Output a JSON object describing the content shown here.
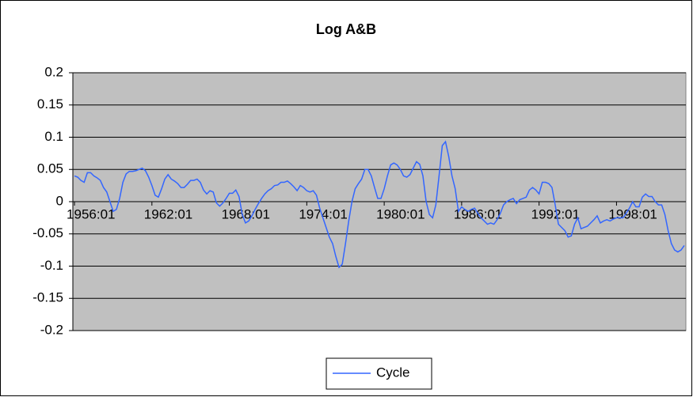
{
  "chart_data": {
    "type": "line",
    "title": "Log A&B",
    "categories": [
      "1956:01",
      null,
      null,
      null,
      null,
      null,
      null,
      null,
      null,
      null,
      null,
      null,
      null,
      null,
      null,
      null,
      null,
      null,
      null,
      null,
      null,
      null,
      null,
      null,
      "1962:01",
      null,
      null,
      null,
      null,
      null,
      null,
      null,
      null,
      null,
      null,
      null,
      null,
      null,
      null,
      null,
      null,
      null,
      null,
      null,
      null,
      null,
      null,
      null,
      "1968:01",
      null,
      null,
      null,
      null,
      null,
      null,
      null,
      null,
      null,
      null,
      null,
      null,
      null,
      null,
      null,
      null,
      null,
      null,
      null,
      null,
      null,
      null,
      null,
      "1974:01",
      null,
      null,
      null,
      null,
      null,
      null,
      null,
      null,
      null,
      null,
      null,
      null,
      null,
      null,
      null,
      null,
      null,
      null,
      null,
      null,
      null,
      null,
      null,
      "1980:01",
      null,
      null,
      null,
      null,
      null,
      null,
      null,
      null,
      null,
      null,
      null,
      null,
      null,
      null,
      null,
      null,
      null,
      null,
      null,
      null,
      null,
      null,
      null,
      "1986:01",
      null,
      null,
      null,
      null,
      null,
      null,
      null,
      null,
      null,
      null,
      null,
      null,
      null,
      null,
      null,
      null,
      null,
      null,
      null,
      null,
      null,
      null,
      null,
      "1992:01",
      null,
      null,
      null,
      null,
      null,
      null,
      null,
      null,
      null,
      null,
      null,
      null,
      null,
      null,
      null,
      null,
      null,
      null,
      null,
      null,
      null,
      null,
      null,
      "1998:01",
      null,
      null,
      null,
      null,
      null,
      null,
      null,
      null,
      null,
      null,
      null,
      null,
      null,
      null,
      null,
      null,
      null,
      null,
      null,
      null,
      null
    ],
    "series": [
      {
        "name": "Cycle",
        "color": "#3366ff",
        "values": [
          0.04,
          0.038,
          0.033,
          0.03,
          0.045,
          0.045,
          0.04,
          0.037,
          0.033,
          0.022,
          0.015,
          0.0,
          -0.015,
          -0.012,
          0.005,
          0.03,
          0.043,
          0.047,
          0.047,
          0.048,
          0.05,
          0.052,
          0.048,
          0.038,
          0.025,
          0.01,
          0.007,
          0.02,
          0.035,
          0.042,
          0.035,
          0.032,
          0.028,
          0.022,
          0.022,
          0.027,
          0.033,
          0.033,
          0.035,
          0.03,
          0.018,
          0.012,
          0.017,
          0.015,
          -0.002,
          -0.007,
          -0.002,
          0.005,
          0.013,
          0.013,
          0.018,
          0.008,
          -0.02,
          -0.033,
          -0.03,
          -0.022,
          -0.012,
          -0.003,
          0.005,
          0.012,
          0.017,
          0.02,
          0.025,
          0.026,
          0.03,
          0.03,
          0.032,
          0.028,
          0.023,
          0.017,
          0.025,
          0.022,
          0.017,
          0.015,
          0.017,
          0.01,
          -0.01,
          -0.025,
          -0.04,
          -0.055,
          -0.065,
          -0.085,
          -0.102,
          -0.097,
          -0.065,
          -0.03,
          0.0,
          0.02,
          0.028,
          0.035,
          0.05,
          0.05,
          0.04,
          0.022,
          0.005,
          0.005,
          0.02,
          0.04,
          0.057,
          0.06,
          0.057,
          0.05,
          0.04,
          0.038,
          0.042,
          0.052,
          0.062,
          0.058,
          0.04,
          0.0,
          -0.02,
          -0.025,
          -0.005,
          0.04,
          0.087,
          0.093,
          0.07,
          0.04,
          0.02,
          -0.015,
          -0.008,
          -0.012,
          -0.015,
          -0.012,
          -0.01,
          -0.018,
          -0.025,
          -0.03,
          -0.035,
          -0.033,
          -0.035,
          -0.028,
          -0.018,
          -0.005,
          0.0,
          0.003,
          0.005,
          -0.003,
          0.003,
          0.005,
          0.007,
          0.018,
          0.022,
          0.018,
          0.012,
          0.03,
          0.03,
          0.028,
          0.022,
          -0.005,
          -0.035,
          -0.04,
          -0.045,
          -0.055,
          -0.053,
          -0.035,
          -0.025,
          -0.042,
          -0.04,
          -0.038,
          -0.033,
          -0.028,
          -0.022,
          -0.033,
          -0.03,
          -0.028,
          -0.03,
          -0.027,
          -0.025,
          -0.025,
          -0.025,
          -0.018,
          -0.01,
          0.0,
          -0.008,
          -0.008,
          0.007,
          0.012,
          0.008,
          0.008,
          0.0,
          -0.005,
          -0.005,
          -0.02,
          -0.045,
          -0.065,
          -0.075,
          -0.078,
          -0.075,
          -0.068
        ]
      }
    ],
    "ylim": [
      -0.2,
      0.2
    ],
    "yticks": [
      -0.2,
      -0.15,
      -0.1,
      -0.05,
      0,
      0.05,
      0.1,
      0.15,
      0.2
    ],
    "grid": true
  }
}
